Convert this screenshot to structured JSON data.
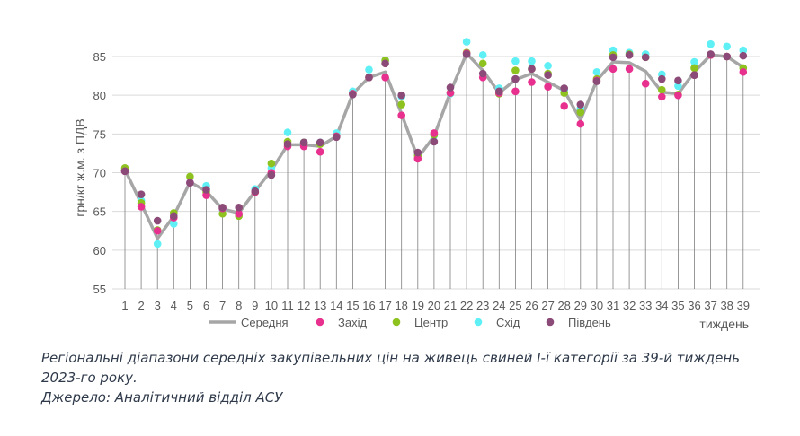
{
  "chart_data": {
    "type": "line",
    "title": "",
    "ylabel": "грн/кг ж.м. з ПДВ",
    "xlabel": "тиждень",
    "ylim": [
      55,
      87
    ],
    "yticks": [
      55,
      60,
      65,
      70,
      75,
      80,
      85
    ],
    "categories": [
      "1",
      "2",
      "3",
      "4",
      "5",
      "6",
      "7",
      "8",
      "9",
      "10",
      "11",
      "12",
      "13",
      "14",
      "15",
      "16",
      "17",
      "18",
      "19",
      "20",
      "21",
      "22",
      "23",
      "24",
      "25",
      "26",
      "27",
      "28",
      "29",
      "30",
      "31",
      "32",
      "33",
      "34",
      "35",
      "36",
      "37",
      "38",
      "39"
    ],
    "grid": "horizontal",
    "legend_position": "bottom",
    "series": [
      {
        "name": "Середня",
        "style": "line",
        "color": "#a6a6a6",
        "values": [
          70.4,
          66.0,
          61.5,
          64.4,
          68.8,
          67.6,
          65.3,
          64.8,
          67.6,
          70.3,
          73.6,
          73.6,
          73.4,
          74.7,
          80.2,
          82.3,
          83.0,
          77.6,
          71.9,
          74.7,
          80.4,
          85.4,
          83.2,
          80.3,
          82.0,
          82.8,
          81.7,
          80.6,
          76.8,
          81.9,
          84.3,
          84.2,
          83.1,
          80.4,
          80.2,
          83.0,
          85.2,
          85.0,
          83.6
        ]
      },
      {
        "name": "Захід",
        "style": "marker",
        "color": "#e8318f",
        "values": [
          70.2,
          65.6,
          62.5,
          64.2,
          68.7,
          67.1,
          65.4,
          64.7,
          67.5,
          70.0,
          73.4,
          73.4,
          72.7,
          74.7,
          80.2,
          82.3,
          82.3,
          77.4,
          71.8,
          75.1,
          80.3,
          85.4,
          82.3,
          80.3,
          80.5,
          81.7,
          81.1,
          78.6,
          76.3,
          81.9,
          83.4,
          83.4,
          81.5,
          79.8,
          80.0,
          82.6,
          85.2,
          85.0,
          83.0
        ]
      },
      {
        "name": "Центр",
        "style": "marker",
        "color": "#8dc21f",
        "values": [
          70.6,
          66.1,
          62.6,
          64.8,
          69.5,
          67.5,
          64.7,
          64.4,
          67.5,
          71.2,
          74.0,
          73.9,
          73.7,
          74.7,
          80.2,
          82.3,
          84.5,
          78.8,
          72.2,
          74.9,
          80.3,
          85.5,
          84.1,
          80.2,
          83.2,
          83.4,
          82.8,
          80.3,
          77.8,
          82.1,
          85.2,
          85.3,
          84.9,
          80.7,
          80.1,
          83.5,
          85.2,
          85.0,
          83.5
        ]
      },
      {
        "name": "Схід",
        "style": "marker",
        "color": "#5ff0f5",
        "values": [
          70.3,
          66.4,
          60.8,
          63.4,
          68.7,
          68.3,
          65.3,
          64.6,
          67.9,
          70.6,
          75.2,
          73.9,
          73.9,
          75.1,
          80.5,
          83.3,
          84.5,
          79.8,
          72.4,
          74.8,
          80.2,
          86.9,
          85.2,
          80.9,
          84.4,
          84.4,
          83.8,
          80.7,
          78.3,
          83.0,
          85.8,
          85.5,
          85.3,
          82.7,
          81.2,
          84.3,
          86.6,
          86.3,
          85.8
        ]
      },
      {
        "name": "Південь",
        "style": "marker",
        "color": "#8b4a78",
        "values": [
          70.2,
          67.2,
          63.8,
          64.4,
          68.7,
          67.8,
          65.5,
          65.5,
          67.6,
          69.7,
          73.7,
          73.9,
          73.9,
          74.6,
          80.1,
          82.3,
          84.1,
          80.0,
          72.6,
          74.0,
          81.0,
          85.3,
          82.8,
          80.5,
          82.1,
          83.4,
          82.6,
          80.9,
          78.8,
          81.8,
          84.9,
          85.2,
          84.9,
          82.1,
          81.9,
          82.6,
          85.3,
          85.0,
          85.1
        ]
      }
    ]
  },
  "caption": {
    "line1": "Регіональні діапазони середніх закупівельних цін на живець свиней І-ї категорії за 39-й тиждень",
    "line2": "2023-го року.",
    "line3": "Джерело: Аналітичний відділ АСУ"
  }
}
